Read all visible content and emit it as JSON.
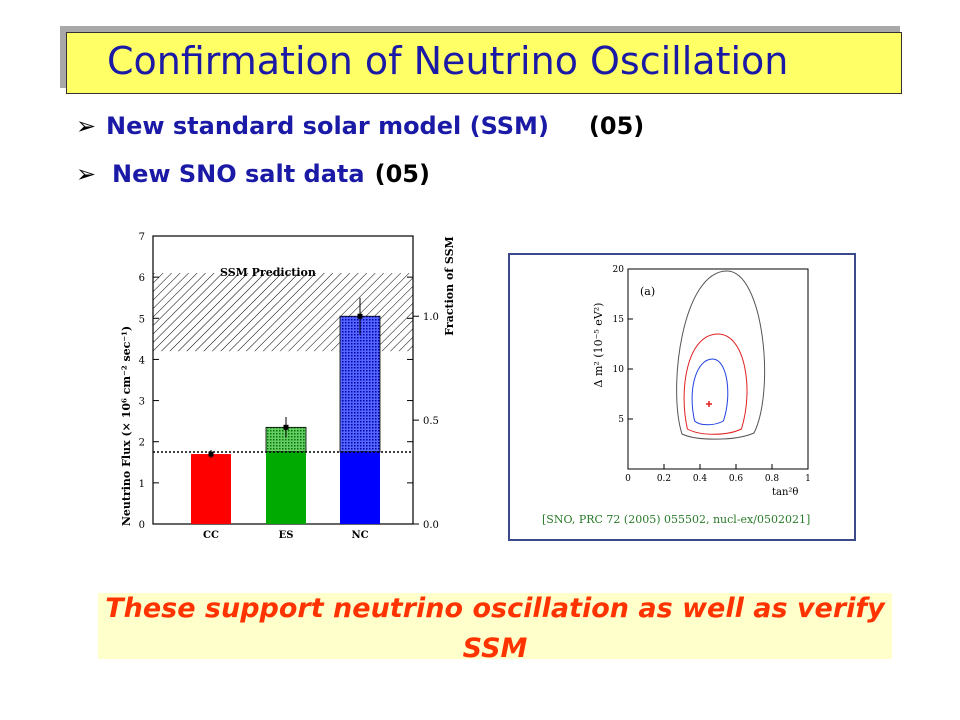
{
  "title": "Confirmation of Neutrino Oscillation",
  "bullets": [
    {
      "main": "New standard solar model (SSM)",
      "tag": "(05)"
    },
    {
      "main": "New SNO salt data",
      "tag": "(05)"
    }
  ],
  "left_chart": {
    "ylabel": "Neutrino Flux (× 10⁶ cm⁻² sec⁻¹)",
    "y2label": "Fraction of SSM",
    "prediction_label": "SSM Prediction",
    "y_ticks": [
      "0",
      "1",
      "2",
      "3",
      "4",
      "5",
      "6",
      "7"
    ],
    "y2_ticks": [
      "0.0",
      "0.5",
      "1.0"
    ],
    "categories": [
      "CC",
      "ES",
      "NC"
    ]
  },
  "right_chart": {
    "panel_label": "(a)",
    "ylabel": "Δ m² (10⁻⁵ eV²)",
    "xlabel": "tan²θ",
    "x_ticks": [
      "0",
      "0.2",
      "0.4",
      "0.6",
      "0.8",
      "1"
    ],
    "y_ticks": [
      "5",
      "10",
      "15",
      "20"
    ],
    "citation": "[SNO, PRC 72 (2005) 055502, nucl-ex/0502021]"
  },
  "chart_data": [
    {
      "type": "bar",
      "categories": [
        "CC",
        "ES",
        "NC"
      ],
      "values": [
        1.7,
        2.35,
        5.05
      ],
      "ylabel": "Neutrino Flux (× 10⁶ cm⁻² sec⁻¹)",
      "y2label": "Fraction of SSM",
      "ylim": [
        0,
        7
      ],
      "annotations": [
        "SSM Prediction"
      ],
      "ssm_band": [
        4.2,
        6.1
      ],
      "cc_level": 1.75
    },
    {
      "type": "scatter",
      "xlabel": "tan²θ",
      "ylabel": "Δ m² (10⁻⁵ eV²)",
      "xlim": [
        0,
        1
      ],
      "ylim": [
        0,
        20
      ],
      "best_fit": {
        "x": 0.45,
        "y": 6.5
      },
      "contours": [
        "blue",
        "red",
        "gray"
      ]
    }
  ],
  "conclusion": "These support neutrino oscillation as well as verify SSM",
  "colors": {
    "title_bg": "#ffff66",
    "title_text": "#1a1aa6",
    "bar_cc": "#ff0000",
    "bar_es": "#00aa00",
    "bar_nc": "#0000ff",
    "conclusion_text": "#ff3300"
  }
}
